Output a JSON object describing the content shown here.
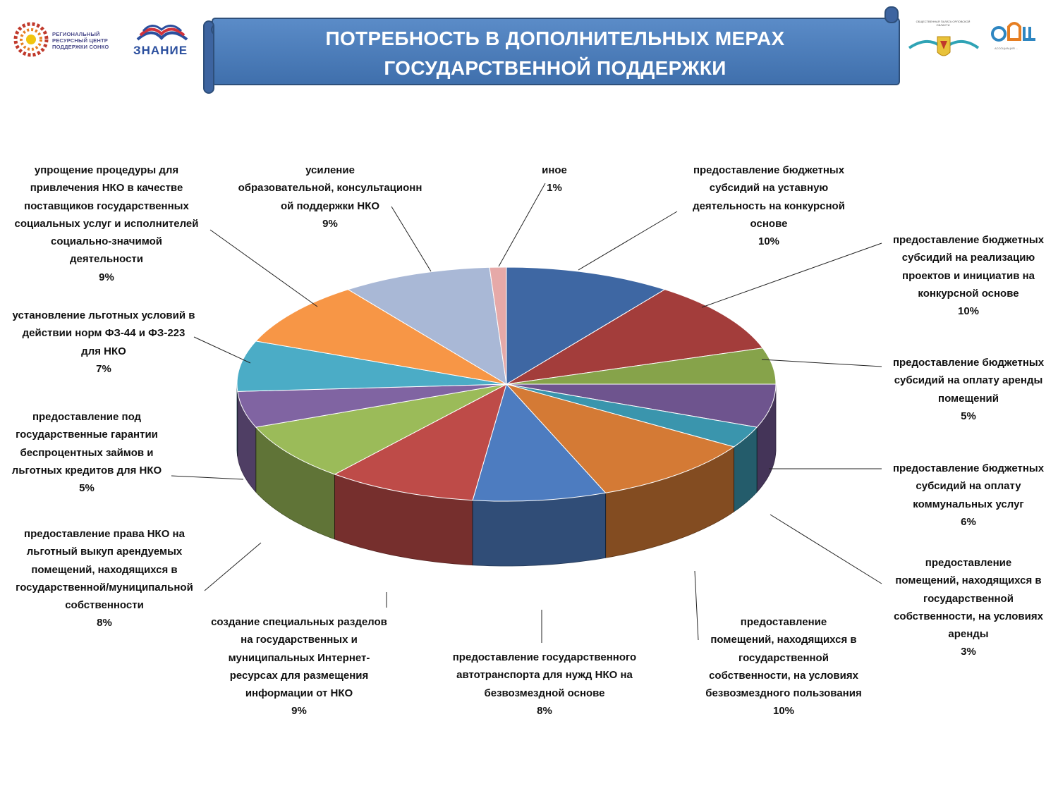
{
  "header": {
    "title_line1": "ПОТРЕБНОСТЬ В ДОПОЛНИТЕЛЬНЫХ МЕРАХ",
    "title_line2": "ГОСУДАРСТВЕННОЙ ПОДДЕРЖКИ",
    "logo_left_lines": [
      "РЕГИОНАЛЬНЫЙ",
      "РЕСУРСНЫЙ ЦЕНТР",
      "ПОДДЕРЖКИ СОНКО"
    ],
    "logo_znanie": "ЗНАНИЕ",
    "logo_right1_text": "ОБЩЕСТВЕННАЯ ПАЛАТА ОРЛОВСКОЙ ОБЛАСТИ",
    "logo_right2_text": "АССОЦИАЦИЯ ...",
    "colors": {
      "banner": "#4f81bd",
      "banner_edge": "#385d8a"
    }
  },
  "chart_data": {
    "type": "pie",
    "title": "",
    "start_angle_deg": 90,
    "direction": "clockwise",
    "slices": [
      {
        "label": [
          "предоставление бюджетных",
          "субсидий на уставную",
          "деятельность на конкурсной",
          "основе"
        ],
        "pct_label": "10%",
        "value": 10,
        "color": "#3e67a3"
      },
      {
        "label": [
          "предоставление бюджетных",
          "субсидий на реализацию",
          "проектов и инициатив на",
          "конкурсной основе"
        ],
        "pct_label": "10%",
        "value": 10,
        "color": "#a33d3b"
      },
      {
        "label": [
          "предоставление бюджетных",
          "субсидий на оплату аренды",
          "помещений"
        ],
        "pct_label": "5%",
        "value": 5,
        "color": "#86a34a"
      },
      {
        "label": [
          "предоставление бюджетных",
          "субсидий на оплату",
          "коммунальных услуг"
        ],
        "pct_label": "6%",
        "value": 6,
        "color": "#6e548e"
      },
      {
        "label": [
          "предоставление",
          "помещений, находящихся в",
          "государственной",
          "собственности, на условиях",
          "аренды"
        ],
        "pct_label": "3%",
        "value": 3,
        "color": "#3a95ad"
      },
      {
        "label": [
          "предоставление",
          "помещений, находящихся в",
          "государственной",
          "собственности, на условиях",
          "безвозмездного пользования"
        ],
        "pct_label": "10%",
        "value": 10,
        "color": "#d47a35"
      },
      {
        "label": [
          "предоставление государственного",
          "автотранспорта для нужд НКО на",
          "безвозмездной основе"
        ],
        "pct_label": "8%",
        "value": 8,
        "color": "#4d7cc0"
      },
      {
        "label": [
          "создание специальных разделов",
          "на государственных и",
          "муниципальных Интернет-",
          "ресурсах для размещения",
          "информации от НКО"
        ],
        "pct_label": "9%",
        "value": 9,
        "color": "#be4b48"
      },
      {
        "label": [
          "предоставление права НКО на",
          "льготный выкуп арендуемых",
          "помещений, находящихся в",
          "государственной/муниципальной",
          "собственности"
        ],
        "pct_label": "8%",
        "value": 8,
        "color": "#9bbb59"
      },
      {
        "label": [
          "предоставление под",
          "государственные гарантии",
          "беспроцентных займов и",
          "льготных кредитов для НКО"
        ],
        "pct_label": "5%",
        "value": 5,
        "color": "#8064a2"
      },
      {
        "label": [
          "установление льготных условий в",
          "действии норм ФЗ-44 и ФЗ-223",
          "для НКО"
        ],
        "pct_label": "7%",
        "value": 7,
        "color": "#4bacc6"
      },
      {
        "label": [
          "упрощение процедуры для",
          "привлечения НКО в качестве",
          "поставщиков государственных",
          "социальных услуг и исполнителей",
          "социально-значимой",
          "деятельности"
        ],
        "pct_label": "9%",
        "value": 9,
        "color": "#f79646"
      },
      {
        "label": [
          "усиление",
          "образовательной, консультационн",
          "ой поддержки НКО"
        ],
        "pct_label": "9%",
        "value": 9,
        "color": "#a9b8d6"
      },
      {
        "label": [
          "иное"
        ],
        "pct_label": "1%",
        "value": 1,
        "color": "#e6a9a8"
      }
    ]
  }
}
